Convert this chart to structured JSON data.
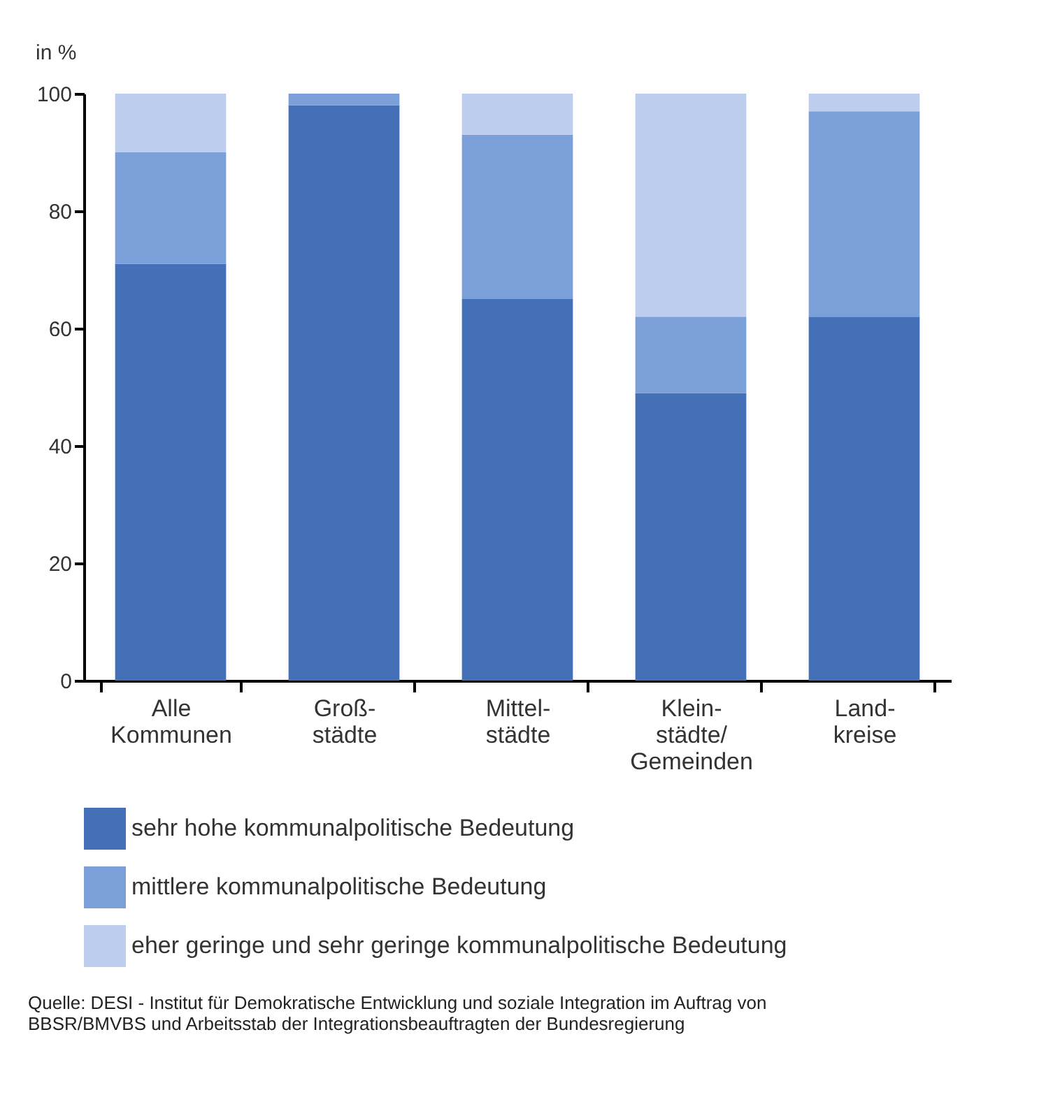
{
  "chart_data": {
    "type": "bar",
    "stacked": true,
    "ylabel": "in %",
    "categories": [
      "Alle\nKommunen",
      "Groß-\nstädte",
      "Mittel-\nstädte",
      "Klein-\nstädte/\nGemeinden",
      "Land-\nkreise"
    ],
    "series": [
      {
        "name": "sehr hohe kommunalpolitische Bedeutung",
        "color": "#4470b8",
        "values": [
          71,
          98,
          65,
          49,
          62
        ]
      },
      {
        "name": "mittlere kommunalpolitische Bedeutung",
        "color": "#7b9fd9",
        "values": [
          19,
          2,
          28,
          13,
          35
        ]
      },
      {
        "name": "eher geringe und sehr geringe kommunalpolitische Bedeutung",
        "color": "#bccdee",
        "values": [
          10,
          0,
          7,
          38,
          3
        ]
      }
    ],
    "ylim": [
      0,
      100
    ],
    "yticks": [
      0,
      20,
      40,
      60,
      80,
      100
    ],
    "grid": false,
    "legend": "bottom",
    "annotations": [
      "Quelle: DESI - Institut für Demokratische Entwicklung und soziale Integration im Auftrag von\nBBSR/BMVBS und Arbeitsstab der Integrationsbeauftragten der Bundesregierung"
    ]
  }
}
